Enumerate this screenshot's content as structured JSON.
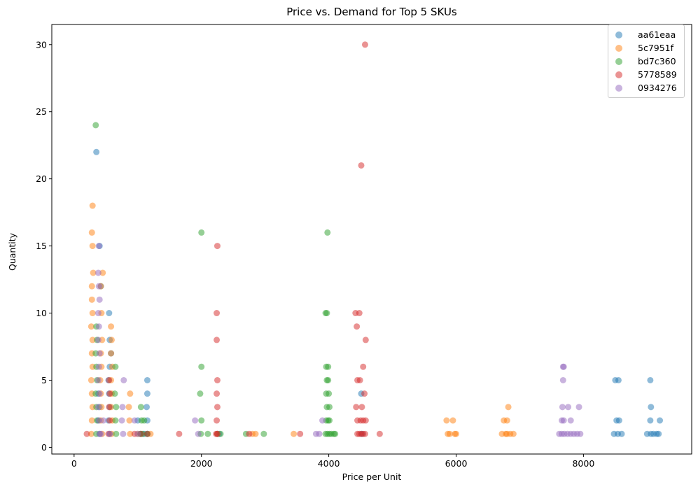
{
  "chart_data": {
    "type": "scatter",
    "title": "Price vs. Demand for Top 5 SKUs",
    "xlabel": "Price per Unit",
    "ylabel": "Quantity",
    "xlim": [
      -350,
      9700
    ],
    "ylim": [
      -0.5,
      31.5
    ],
    "xticks": [
      0,
      2000,
      4000,
      6000,
      8000
    ],
    "yticks": [
      0,
      5,
      10,
      15,
      20,
      25,
      30
    ],
    "grid": false,
    "legend_position": "top-right",
    "series": [
      {
        "name": "aa61eaa",
        "color": "#1f77b4",
        "points": [
          [
            350,
            22
          ],
          [
            400,
            15
          ],
          [
            420,
            12
          ],
          [
            550,
            10
          ],
          [
            560,
            8
          ],
          [
            580,
            7
          ],
          [
            560,
            6
          ],
          [
            540,
            5
          ],
          [
            550,
            4
          ],
          [
            560,
            3
          ],
          [
            540,
            2
          ],
          [
            560,
            1
          ],
          [
            380,
            4
          ],
          [
            400,
            3
          ],
          [
            380,
            2
          ],
          [
            400,
            1
          ],
          [
            1150,
            5
          ],
          [
            1150,
            4
          ],
          [
            1140,
            3
          ],
          [
            1150,
            2
          ],
          [
            1150,
            1
          ],
          [
            1100,
            1
          ],
          [
            1050,
            1
          ],
          [
            1000,
            2
          ],
          [
            2250,
            1
          ],
          [
            2280,
            1
          ],
          [
            4510,
            4
          ],
          [
            4520,
            1
          ],
          [
            8500,
            5
          ],
          [
            8550,
            5
          ],
          [
            8520,
            2
          ],
          [
            8560,
            2
          ],
          [
            8540,
            1
          ],
          [
            8600,
            1
          ],
          [
            8480,
            1
          ],
          [
            9050,
            5
          ],
          [
            9060,
            3
          ],
          [
            9050,
            2
          ],
          [
            9060,
            1
          ],
          [
            9100,
            1
          ],
          [
            9150,
            1
          ],
          [
            9200,
            2
          ],
          [
            9180,
            1
          ],
          [
            9000,
            1
          ]
        ]
      },
      {
        "name": "5c7951f",
        "color": "#ff7f0e",
        "points": [
          [
            290,
            18
          ],
          [
            280,
            16
          ],
          [
            290,
            15
          ],
          [
            300,
            13
          ],
          [
            280,
            12
          ],
          [
            280,
            11
          ],
          [
            290,
            10
          ],
          [
            270,
            9
          ],
          [
            290,
            8
          ],
          [
            280,
            7
          ],
          [
            290,
            6
          ],
          [
            270,
            5
          ],
          [
            280,
            4
          ],
          [
            290,
            3
          ],
          [
            280,
            2
          ],
          [
            270,
            1
          ],
          [
            450,
            13
          ],
          [
            420,
            12
          ],
          [
            430,
            10
          ],
          [
            440,
            8
          ],
          [
            420,
            7
          ],
          [
            430,
            6
          ],
          [
            410,
            5
          ],
          [
            420,
            4
          ],
          [
            430,
            3
          ],
          [
            420,
            2
          ],
          [
            440,
            1
          ],
          [
            580,
            9
          ],
          [
            590,
            8
          ],
          [
            580,
            7
          ],
          [
            600,
            6
          ],
          [
            580,
            5
          ],
          [
            590,
            4
          ],
          [
            580,
            3
          ],
          [
            600,
            2
          ],
          [
            590,
            1
          ],
          [
            880,
            4
          ],
          [
            860,
            3
          ],
          [
            870,
            2
          ],
          [
            880,
            1
          ],
          [
            1000,
            1
          ],
          [
            1200,
            1
          ],
          [
            2250,
            1
          ],
          [
            2800,
            1
          ],
          [
            2850,
            1
          ],
          [
            3450,
            1
          ],
          [
            5850,
            2
          ],
          [
            5950,
            2
          ],
          [
            5900,
            1
          ],
          [
            5980,
            1
          ],
          [
            6000,
            1
          ],
          [
            5870,
            1
          ],
          [
            6750,
            2
          ],
          [
            6800,
            2
          ],
          [
            6820,
            3
          ],
          [
            6780,
            1
          ],
          [
            6850,
            1
          ],
          [
            6900,
            1
          ],
          [
            6720,
            1
          ],
          [
            6800,
            1
          ]
        ]
      },
      {
        "name": "bd7c360",
        "color": "#2ca02c",
        "points": [
          [
            340,
            24
          ],
          [
            350,
            9
          ],
          [
            360,
            8
          ],
          [
            340,
            7
          ],
          [
            350,
            6
          ],
          [
            360,
            5
          ],
          [
            340,
            4
          ],
          [
            350,
            3
          ],
          [
            360,
            2
          ],
          [
            350,
            1
          ],
          [
            650,
            6
          ],
          [
            640,
            4
          ],
          [
            660,
            3
          ],
          [
            650,
            2
          ],
          [
            660,
            1
          ],
          [
            1050,
            3
          ],
          [
            1060,
            2
          ],
          [
            1040,
            1
          ],
          [
            1100,
            2
          ],
          [
            1080,
            1
          ],
          [
            1150,
            1
          ],
          [
            2000,
            16
          ],
          [
            2000,
            6
          ],
          [
            1980,
            4
          ],
          [
            2000,
            2
          ],
          [
            1990,
            1
          ],
          [
            2100,
            1
          ],
          [
            2300,
            1
          ],
          [
            2700,
            1
          ],
          [
            2980,
            1
          ],
          [
            3980,
            16
          ],
          [
            3950,
            10
          ],
          [
            3970,
            10
          ],
          [
            3960,
            6
          ],
          [
            3990,
            6
          ],
          [
            3970,
            5
          ],
          [
            3990,
            5
          ],
          [
            3960,
            4
          ],
          [
            4000,
            4
          ],
          [
            3970,
            3
          ],
          [
            4010,
            3
          ],
          [
            3960,
            2
          ],
          [
            3990,
            2
          ],
          [
            4010,
            2
          ],
          [
            3950,
            1
          ],
          [
            3980,
            1
          ],
          [
            4010,
            1
          ],
          [
            4040,
            1
          ],
          [
            4080,
            1
          ],
          [
            4100,
            1
          ]
        ]
      },
      {
        "name": "5778589",
        "color": "#d62728",
        "points": [
          [
            200,
            1
          ],
          [
            550,
            5
          ],
          [
            560,
            4
          ],
          [
            550,
            3
          ],
          [
            560,
            2
          ],
          [
            540,
            1
          ],
          [
            950,
            1
          ],
          [
            1050,
            1
          ],
          [
            1150,
            1
          ],
          [
            1650,
            1
          ],
          [
            2250,
            15
          ],
          [
            2240,
            10
          ],
          [
            2240,
            8
          ],
          [
            2250,
            5
          ],
          [
            2240,
            4
          ],
          [
            2250,
            3
          ],
          [
            2240,
            2
          ],
          [
            2250,
            1
          ],
          [
            2230,
            1
          ],
          [
            2750,
            1
          ],
          [
            3550,
            1
          ],
          [
            4570,
            30
          ],
          [
            4510,
            21
          ],
          [
            4420,
            10
          ],
          [
            4480,
            10
          ],
          [
            4440,
            9
          ],
          [
            4580,
            8
          ],
          [
            4540,
            6
          ],
          [
            4450,
            5
          ],
          [
            4490,
            5
          ],
          [
            4560,
            4
          ],
          [
            4430,
            3
          ],
          [
            4520,
            3
          ],
          [
            4450,
            2
          ],
          [
            4500,
            2
          ],
          [
            4540,
            2
          ],
          [
            4580,
            2
          ],
          [
            4450,
            1
          ],
          [
            4480,
            1
          ],
          [
            4510,
            1
          ],
          [
            4540,
            1
          ],
          [
            4570,
            1
          ],
          [
            4800,
            1
          ]
        ]
      },
      {
        "name": "0934276",
        "color": "#9467bd",
        "points": [
          [
            390,
            15
          ],
          [
            380,
            13
          ],
          [
            390,
            12
          ],
          [
            400,
            11
          ],
          [
            380,
            10
          ],
          [
            390,
            9
          ],
          [
            380,
            8
          ],
          [
            400,
            7
          ],
          [
            390,
            6
          ],
          [
            380,
            5
          ],
          [
            400,
            4
          ],
          [
            380,
            3
          ],
          [
            390,
            2
          ],
          [
            400,
            1
          ],
          [
            420,
            1
          ],
          [
            460,
            2
          ],
          [
            560,
            1
          ],
          [
            780,
            5
          ],
          [
            760,
            3
          ],
          [
            750,
            2
          ],
          [
            770,
            1
          ],
          [
            950,
            2
          ],
          [
            1000,
            1
          ],
          [
            1900,
            2
          ],
          [
            1950,
            1
          ],
          [
            3800,
            1
          ],
          [
            3850,
            1
          ],
          [
            3900,
            2
          ],
          [
            7680,
            6
          ],
          [
            7690,
            6
          ],
          [
            7680,
            5
          ],
          [
            7670,
            3
          ],
          [
            7760,
            3
          ],
          [
            7930,
            3
          ],
          [
            7660,
            2
          ],
          [
            7690,
            2
          ],
          [
            7800,
            2
          ],
          [
            7620,
            1
          ],
          [
            7660,
            1
          ],
          [
            7700,
            1
          ],
          [
            7750,
            1
          ],
          [
            7800,
            1
          ],
          [
            7850,
            1
          ],
          [
            7900,
            1
          ],
          [
            7950,
            1
          ]
        ]
      }
    ]
  }
}
